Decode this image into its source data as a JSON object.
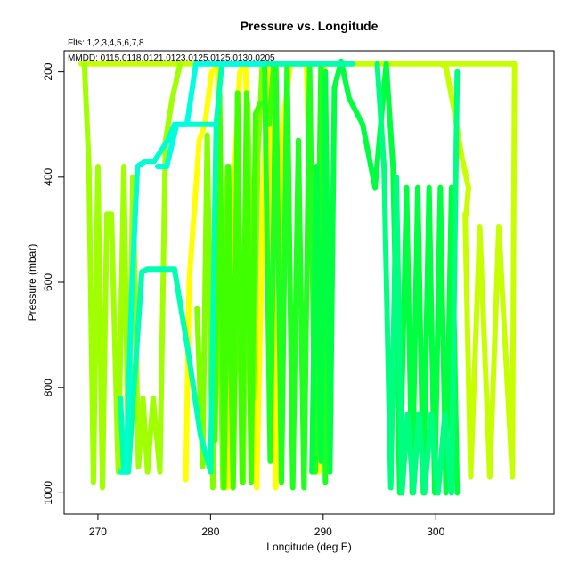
{
  "chart_data": {
    "type": "line",
    "title": "Pressure vs. Longitude",
    "subtitle": "Flts: 1,2,3,4,5,6,7,8",
    "annotation": "MMDD: 0115,0118,0121,0123,0125,0125,0130,0205",
    "xlabel": "Longitude (deg E)",
    "ylabel": "Pressure (mbar)",
    "xlim": [
      267,
      310.5
    ],
    "ylim": [
      1040,
      160
    ],
    "y_reversed": true,
    "x_ticks": [
      "270",
      "280",
      "290",
      "300"
    ],
    "y_ticks": [
      "200",
      "400",
      "600",
      "800",
      "1000"
    ],
    "grid": false,
    "series": [
      {
        "color": "#FFFF00",
        "x": [
          277.8,
          278.1,
          279.0,
          279.5,
          280.1,
          280.6,
          281.0,
          281.5,
          282.1,
          282.6,
          283.1,
          283.6,
          284.1,
          284.7,
          285.3,
          285.8,
          286.4,
          287.1,
          288.5,
          289.6,
          290.1
        ],
        "y": [
          975,
          600,
          330,
          300,
          200,
          190,
          600,
          990,
          400,
          200,
          185,
          600,
          990,
          400,
          185,
          990,
          300,
          185,
          185,
          960,
          185
        ]
      },
      {
        "color": "#C8FF00",
        "x": [
          268.5,
          270.2,
          271.0,
          283.2,
          288.0,
          289.5,
          290.5,
          293.0,
          294.2,
          296.2,
          296.9,
          300.6,
          301.3,
          302.6,
          303.5,
          304.3,
          304.8,
          305.3,
          305.9,
          306.6,
          307.0,
          306.8,
          305.6,
          304.8,
          303.9,
          303.1,
          302.6,
          302.7,
          302.9,
          302.3,
          301.6,
          300.9,
          300.4
        ],
        "y": [
          185,
          185,
          185,
          185,
          185,
          185,
          185,
          185,
          185,
          185,
          185,
          185,
          185,
          185,
          185,
          185,
          185,
          185,
          185,
          185,
          185,
          970,
          495,
          970,
          495,
          970,
          470,
          470,
          420,
          360,
          270,
          190,
          185
        ]
      },
      {
        "color": "#A0FF00",
        "x": [
          268.8,
          269.2,
          269.6,
          270.0,
          270.4,
          270.8,
          271.2,
          271.8,
          272.3,
          272.7,
          273.1,
          273.6,
          274.0,
          274.4,
          274.9,
          275.5,
          276.0,
          276.6,
          277.3
        ],
        "y": [
          185,
          380,
          980,
          380,
          990,
          470,
          470,
          960,
          380,
          960,
          400,
          950,
          820,
          960,
          820,
          960,
          330,
          250,
          185
        ]
      },
      {
        "color": "#80FF00",
        "x": [
          278.8,
          279.3,
          279.7,
          280.2,
          280.6,
          281.1,
          281.5,
          282.0,
          282.4,
          282.9,
          283.3,
          283.8,
          284.2,
          284.6
        ],
        "y": [
          650,
          950,
          320,
          990,
          380,
          990,
          380,
          990,
          520,
          980,
          260,
          820,
          360,
          185
        ]
      },
      {
        "color": "#40FF00",
        "x": [
          280.4,
          280.8,
          281.2,
          281.6,
          282.0,
          282.4,
          282.8,
          283.2,
          283.6,
          284.0,
          284.4,
          284.8,
          285.2,
          285.6
        ],
        "y": [
          900,
          240,
          990,
          380,
          990,
          240,
          980,
          240,
          980,
          280,
          260,
          260,
          300,
          185
        ]
      },
      {
        "color": "#20FF20",
        "x": [
          284.8,
          285.3,
          285.8,
          286.3,
          286.8,
          287.3,
          287.8,
          288.3,
          288.8,
          289.3,
          289.8,
          290.2
        ],
        "y": [
          185,
          940,
          185,
          980,
          185,
          990,
          330,
          990,
          185,
          960,
          185,
          980
        ]
      },
      {
        "color": "#00FF40",
        "x": [
          289.0,
          289.4,
          289.8,
          290.2,
          290.6,
          291.0,
          291.6,
          292.3,
          293.5,
          294.6,
          295.6,
          296.2,
          296.8,
          297.4,
          297.9,
          298.4,
          298.9,
          299.4,
          299.9,
          300.4,
          300.9,
          301.4,
          301.9
        ],
        "y": [
          960,
          380,
          940,
          200,
          960,
          230,
          180,
          250,
          300,
          420,
          185,
          380,
          1000,
          420,
          1000,
          420,
          1000,
          420,
          1000,
          420,
          1000,
          420,
          1000
        ]
      },
      {
        "color": "#00FF80",
        "x": [
          294.8,
          295.4,
          296.0,
          296.5,
          297.0,
          297.5,
          298.0,
          298.5,
          299.0,
          299.6,
          300.2,
          300.8,
          301.4,
          301.9
        ],
        "y": [
          185,
          380,
          990,
          400,
          1000,
          850,
          1000,
          850,
          1000,
          850,
          1000,
          850,
          1000,
          200
        ]
      },
      {
        "color": "#00FFB0",
        "x": [
          272.0,
          272.3,
          272.7,
          273.2,
          273.9,
          274.4,
          276.8,
          278.0,
          279.1,
          280.0,
          280.5,
          281.0,
          281.9,
          282.6,
          283.4,
          284.1,
          285.0,
          285.7,
          286.3,
          287.0,
          287.6,
          288.1,
          288.7,
          289.1,
          289.5,
          290.4,
          291.3,
          292.6
        ],
        "y": [
          820,
          960,
          960,
          800,
          580,
          575,
          575,
          730,
          890,
          960,
          300,
          185,
          185,
          185,
          185,
          185,
          185,
          185,
          185,
          185,
          185,
          185,
          185,
          185,
          185,
          185,
          185,
          185
        ]
      },
      {
        "color": "#00FFD0",
        "x": [
          272.0,
          272.5,
          273.0,
          273.5,
          274.2,
          275.0,
          276.2,
          276.8,
          277.6,
          278.4,
          279.2,
          280.0,
          280.5
        ],
        "y": [
          960,
          960,
          620,
          380,
          370,
          370,
          330,
          300,
          300,
          300,
          300,
          300,
          300
        ]
      },
      {
        "color": "#00FFE0",
        "x": [
          275.3,
          276.1,
          277.0,
          277.9,
          278.7,
          279.6,
          280.5,
          281.3,
          282.2,
          283.0,
          283.7,
          284.6
        ],
        "y": [
          380,
          380,
          300,
          300,
          185,
          185,
          185,
          185,
          185,
          185,
          185,
          185
        ]
      }
    ]
  }
}
